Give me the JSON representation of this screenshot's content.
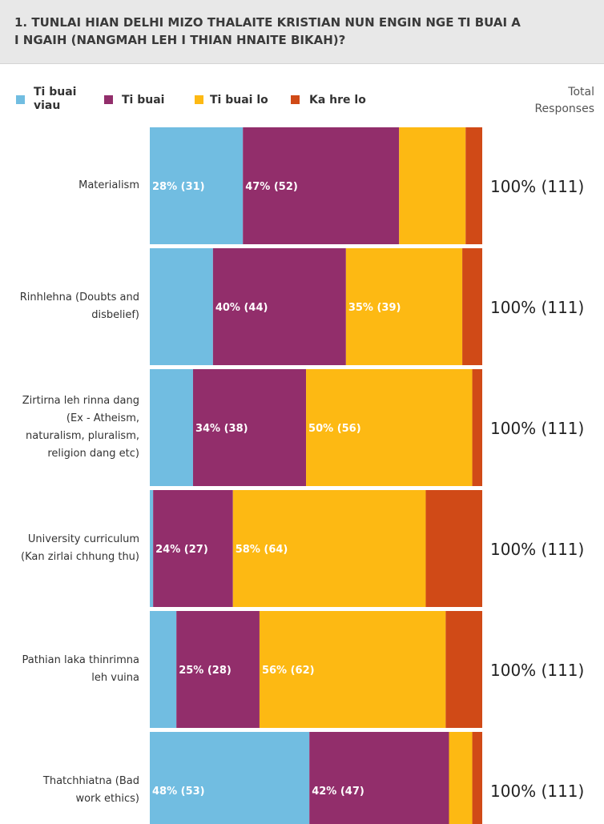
{
  "chart_data": {
    "type": "bar",
    "orientation": "horizontal",
    "stacked": true,
    "title": "1. TUNLAI HIAN DELHI MIZO THALAITE KRISTIAN NUN ENGIN NGE TI BUAI A I NGAIH (NANGMAH LEH I THIAN HNAITE BIKAH)?",
    "total_header": "Total Responses",
    "categories": [
      "Materialism",
      "Rinhlehna (Doubts and disbelief)",
      "Zirtirna leh rinna dang (Ex - Atheism, naturalism, pluralism, religion dang etc)",
      "University curriculum (Kan zirlai chhung thu)",
      "Pathian laka thinrimna leh vuina",
      "Thatchhiatna (Bad work ethics)"
    ],
    "xlim": [
      0,
      100
    ],
    "series": [
      {
        "name": "Ti buai viau",
        "color": "#71bde1",
        "values": [
          28,
          19,
          13,
          1,
          8,
          48
        ],
        "value_labels": [
          "28% (31)",
          null,
          null,
          null,
          null,
          "48% (53)"
        ]
      },
      {
        "name": "Ti buai",
        "color": "#922e6b",
        "values": [
          47,
          40,
          34,
          24,
          25,
          42
        ],
        "value_labels": [
          "47% (52)",
          "40% (44)",
          "34% (38)",
          "24% (27)",
          "25% (28)",
          "42% (47)"
        ]
      },
      {
        "name": "Ti buai lo",
        "color": "#fdb913",
        "values": [
          20,
          35,
          50,
          58,
          56,
          7
        ],
        "value_labels": [
          null,
          "35% (39)",
          "50% (56)",
          "58% (64)",
          "56% (62)",
          null
        ]
      },
      {
        "name": "Ka hre lo",
        "color": "#d04a17",
        "values": [
          5,
          6,
          3,
          17,
          11,
          3
        ],
        "value_labels": [
          null,
          null,
          null,
          null,
          null,
          null
        ]
      }
    ],
    "totals": [
      "100% (111)",
      "100% (111)",
      "100% (111)",
      "100% (111)",
      "100% (111)",
      "100% (111)"
    ]
  }
}
